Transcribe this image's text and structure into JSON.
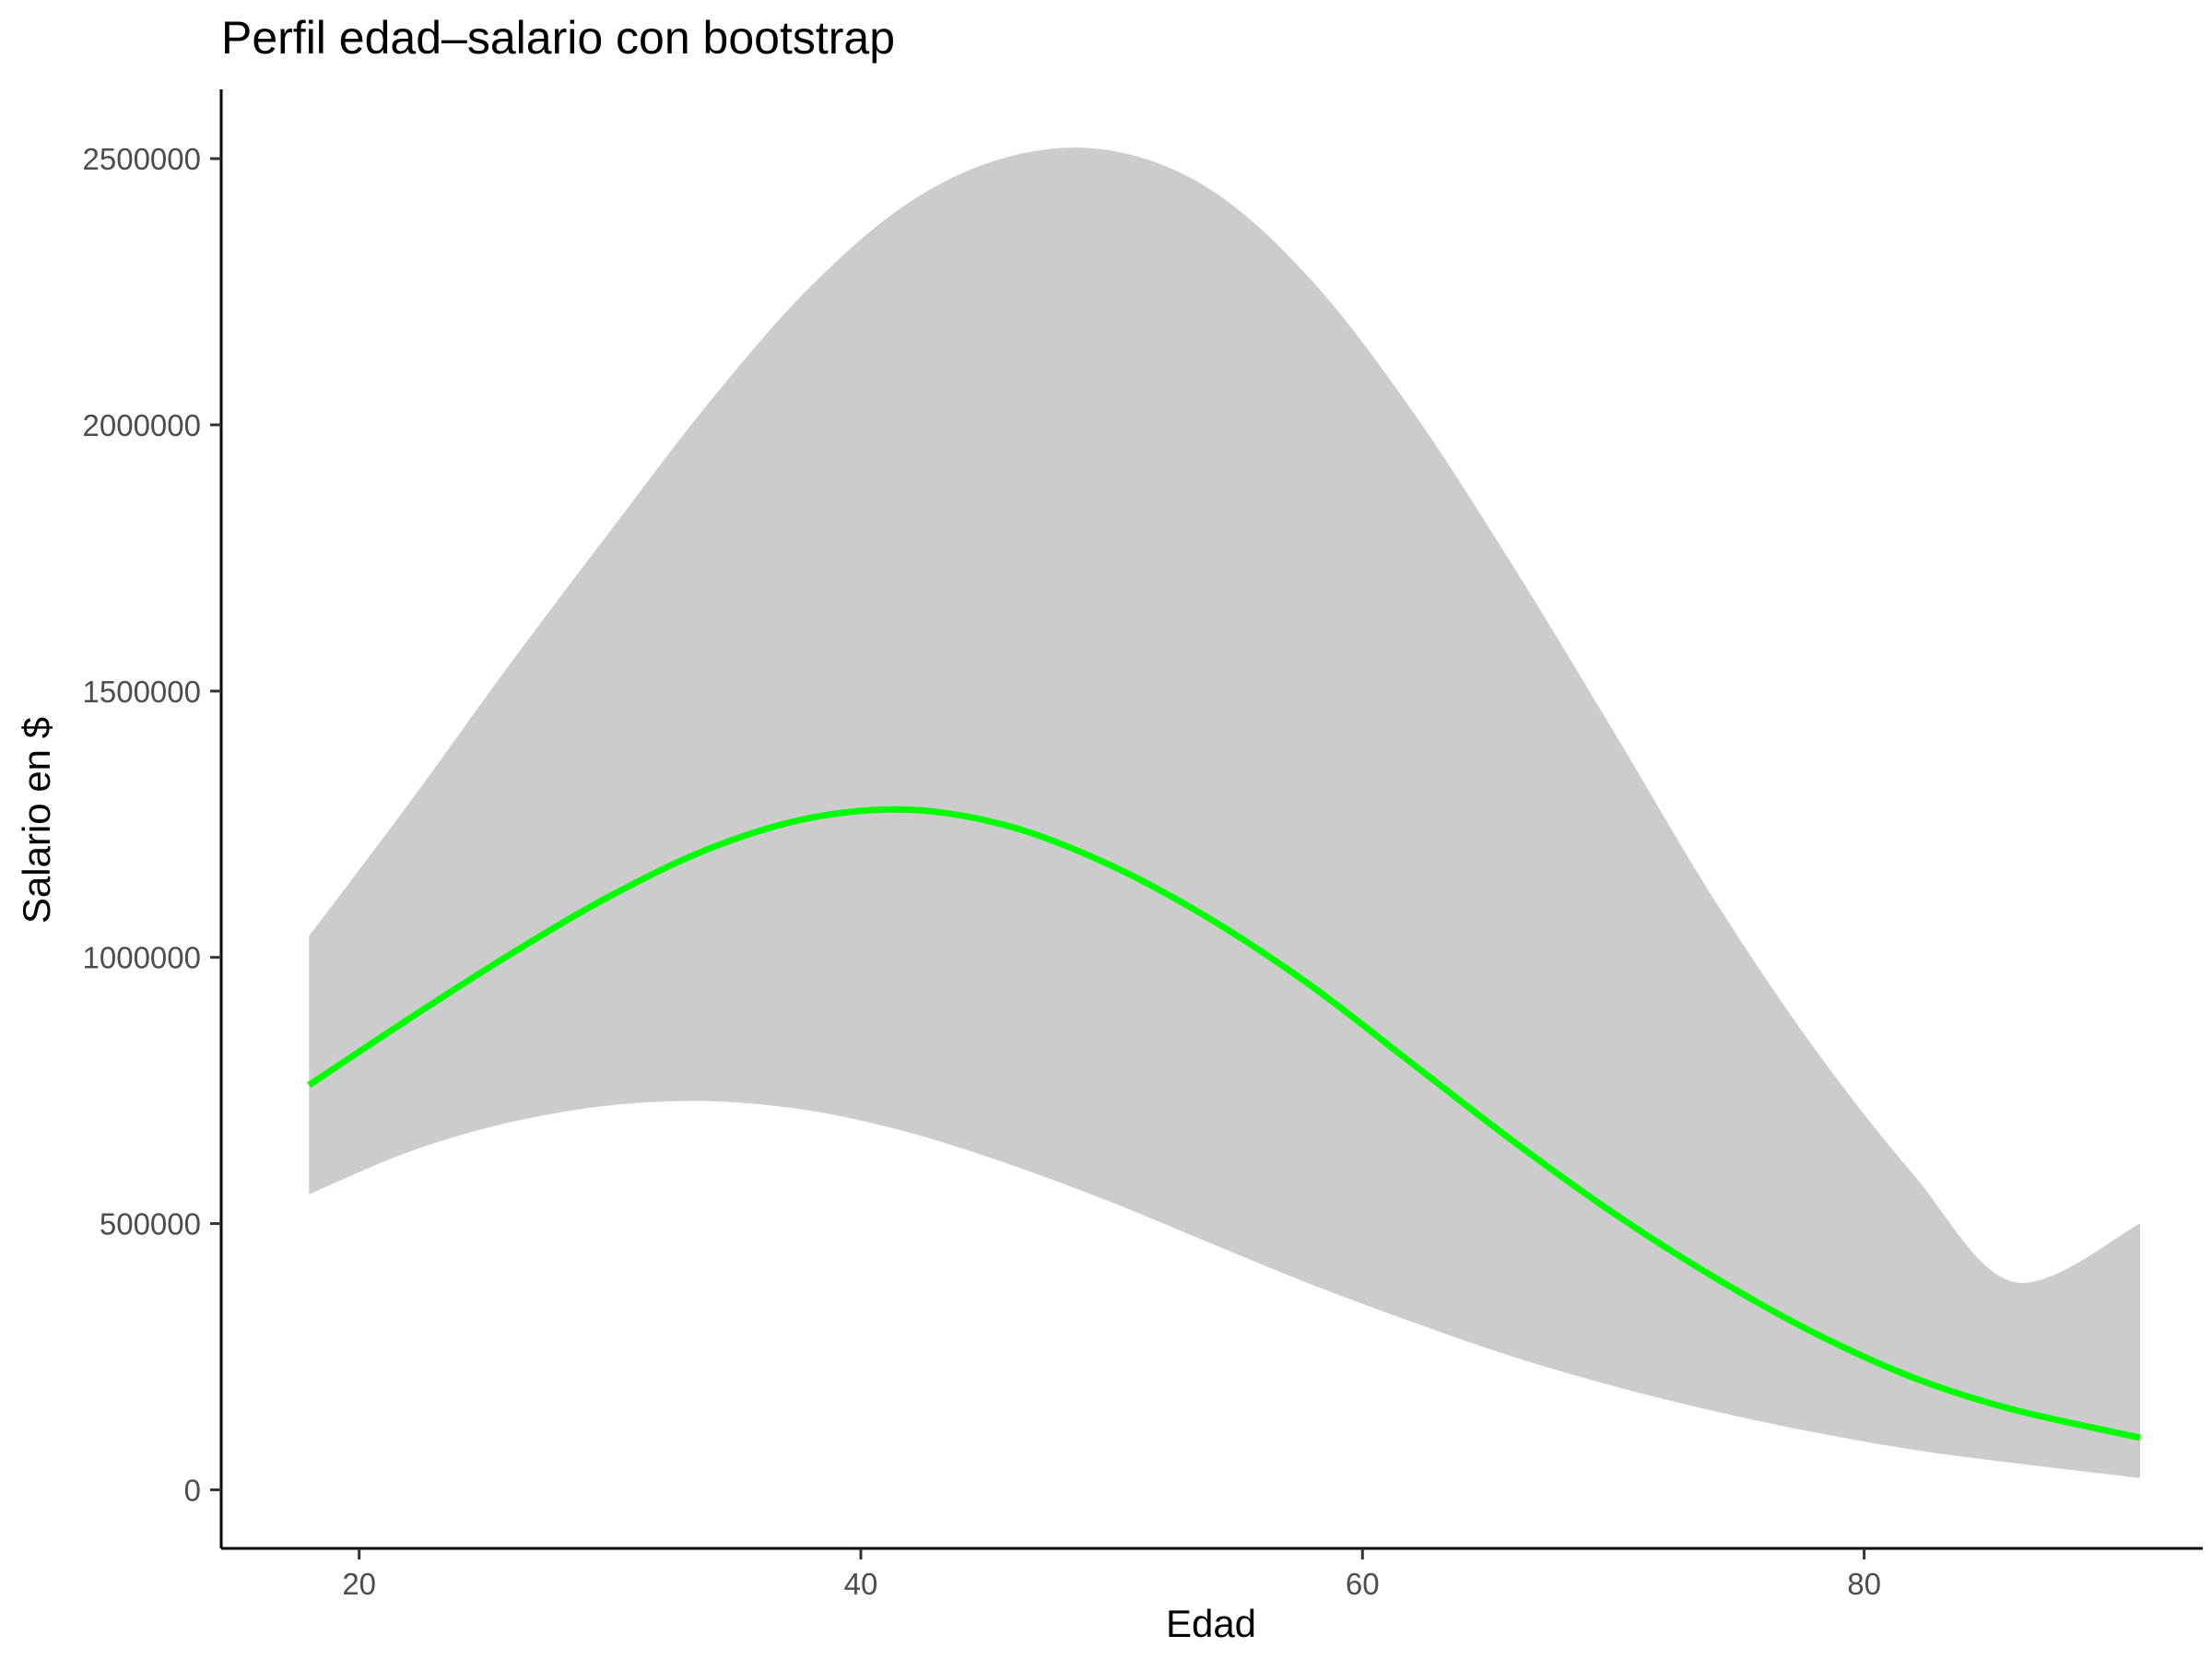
{
  "chart_data": {
    "type": "line",
    "title": "Perfil edad–salario con  bootstrap",
    "xlabel": "Edad",
    "ylabel": "Salario en $",
    "xlim": [
      14.5,
      93.5
    ],
    "ylim": [
      -110000,
      2630000
    ],
    "x_ticks": [
      20,
      40,
      60,
      80
    ],
    "y_ticks": [
      0,
      500000,
      1000000,
      1500000,
      2000000,
      2500000
    ],
    "x_tick_labels": [
      "20",
      "40",
      "60",
      "80"
    ],
    "y_tick_labels": [
      "0",
      "500000",
      "1000000",
      "1500000",
      "2000000",
      "2500000"
    ],
    "grid": false,
    "legend": "none",
    "colors": {
      "line": "#00ff00",
      "band": "#cccccc",
      "axis": "#000000"
    },
    "x": [
      18,
      22,
      26,
      30,
      34,
      38,
      42,
      46,
      50,
      54,
      58,
      62,
      66,
      70,
      74,
      78,
      82,
      86,
      91
    ],
    "series": [
      {
        "role": "estimate",
        "values": [
          760000,
          885000,
          1005000,
          1115000,
          1205000,
          1262000,
          1277000,
          1245000,
          1172000,
          1070000,
          945000,
          800000,
          655000,
          520000,
          400000,
          295000,
          210000,
          150000,
          98000
        ]
      },
      {
        "role": "upper",
        "values": [
          1040000,
          1290000,
          1550000,
          1800000,
          2045000,
          2260000,
          2420000,
          2505000,
          2515000,
          2440000,
          2270000,
          2025000,
          1735000,
          1425000,
          1110000,
          830000,
          590000,
          390000,
          500000
        ]
      },
      {
        "role": "lower",
        "values": [
          555000,
          635000,
          690000,
          722000,
          730000,
          712000,
          670000,
          610000,
          540000,
          462000,
          385000,
          315000,
          250000,
          195000,
          148000,
          108000,
          75000,
          50000,
          22000
        ]
      }
    ]
  }
}
